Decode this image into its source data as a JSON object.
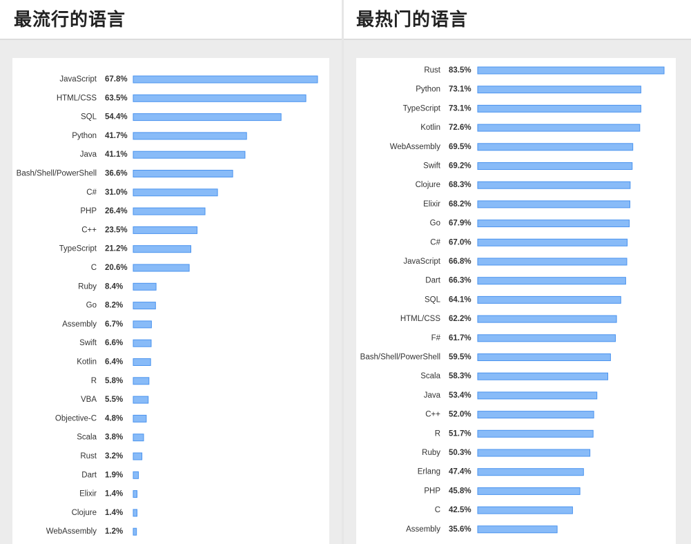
{
  "panels": {
    "left": {
      "title": "最流行的语言"
    },
    "right": {
      "title": "最热门的语言"
    }
  },
  "colors": {
    "bar_fill": "#88bbf8",
    "bar_stroke": "#4a93ee",
    "text": "#333333"
  },
  "chart_data": [
    {
      "type": "bar",
      "orientation": "horizontal",
      "title": "最流行的语言",
      "value_unit": "%",
      "xlim": [
        0,
        70
      ],
      "grid": false,
      "categories": [
        "JavaScript",
        "HTML/CSS",
        "SQL",
        "Python",
        "Java",
        "Bash/Shell/PowerShell",
        "C#",
        "PHP",
        "C++",
        "TypeScript",
        "C",
        "Ruby",
        "Go",
        "Assembly",
        "Swift",
        "Kotlin",
        "R",
        "VBA",
        "Objective-C",
        "Scala",
        "Rust",
        "Dart",
        "Elixir",
        "Clojure",
        "WebAssembly"
      ],
      "values": [
        67.8,
        63.5,
        54.4,
        41.7,
        41.1,
        36.6,
        31.0,
        26.4,
        23.5,
        21.2,
        20.6,
        8.4,
        8.2,
        6.7,
        6.6,
        6.4,
        5.8,
        5.5,
        4.8,
        3.8,
        3.2,
        1.9,
        1.4,
        1.4,
        1.2
      ],
      "value_labels": [
        "67.8%",
        "63.5%",
        "54.4%",
        "41.7%",
        "41.1%",
        "36.6%",
        "31.0%",
        "26.4%",
        "23.5%",
        "21.2%",
        "20.6%",
        "8.4%",
        "8.2%",
        "6.7%",
        "6.6%",
        "6.4%",
        "5.8%",
        "5.5%",
        "4.8%",
        "3.8%",
        "3.2%",
        "1.9%",
        "1.4%",
        "1.4%",
        "1.2%"
      ]
    },
    {
      "type": "bar",
      "orientation": "horizontal",
      "title": "最热门的语言",
      "value_unit": "%",
      "xlim": [
        0,
        85
      ],
      "grid": false,
      "categories": [
        "Rust",
        "Python",
        "TypeScript",
        "Kotlin",
        "WebAssembly",
        "Swift",
        "Clojure",
        "Elixir",
        "Go",
        "C#",
        "JavaScript",
        "Dart",
        "SQL",
        "HTML/CSS",
        "F#",
        "Bash/Shell/PowerShell",
        "Scala",
        "Java",
        "C++",
        "R",
        "Ruby",
        "Erlang",
        "PHP",
        "C",
        "Assembly"
      ],
      "values": [
        83.5,
        73.1,
        73.1,
        72.6,
        69.5,
        69.2,
        68.3,
        68.2,
        67.9,
        67.0,
        66.8,
        66.3,
        64.1,
        62.2,
        61.7,
        59.5,
        58.3,
        53.4,
        52.0,
        51.7,
        50.3,
        47.4,
        45.8,
        42.5,
        35.6
      ],
      "value_labels": [
        "83.5%",
        "73.1%",
        "73.1%",
        "72.6%",
        "69.5%",
        "69.2%",
        "68.3%",
        "68.2%",
        "67.9%",
        "67.0%",
        "66.8%",
        "66.3%",
        "64.1%",
        "62.2%",
        "61.7%",
        "59.5%",
        "58.3%",
        "53.4%",
        "52.0%",
        "51.7%",
        "50.3%",
        "47.4%",
        "45.8%",
        "42.5%",
        "35.6%"
      ]
    }
  ]
}
